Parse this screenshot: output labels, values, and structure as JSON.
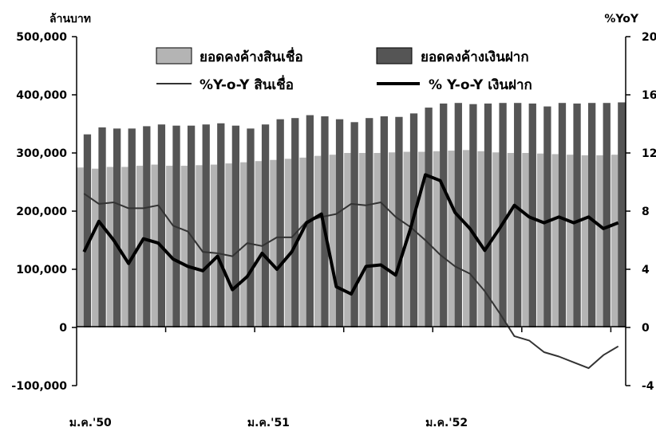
{
  "chart_data": {
    "type": "bar+line",
    "left_unit": "ล้านบาท",
    "right_unit": "%YoY",
    "left_axis": {
      "ylim": [
        -100000,
        500000
      ],
      "ticks": [
        -100000,
        0,
        100000,
        200000,
        300000,
        400000,
        500000
      ],
      "tick_labels": [
        "-100,000",
        "0",
        "100,000",
        "200,000",
        "300,000",
        "400,000",
        "500,000"
      ]
    },
    "right_axis": {
      "ylim": [
        -4,
        20
      ],
      "ticks": [
        -4,
        0,
        4,
        8,
        12,
        16,
        20
      ],
      "tick_labels": [
        "-4",
        "0",
        "4",
        "8",
        "12",
        "16",
        "20"
      ]
    },
    "x_tick_labels": [
      "ม.ค.'50",
      "ม.ค.'51",
      "ม.ค.'52"
    ],
    "x_label_positions": [
      0,
      12,
      24
    ],
    "legend": {
      "loans_bar": "ยอดคงค้างสินเชื่อ",
      "deposits_bar": "ยอดคงค้างเงินฝาก",
      "loans_line": "%Y-o-Y สินเชื่อ",
      "deposits_line": "% Y-o-Y เงินฝาก"
    },
    "colors": {
      "loans_bar": "#b4b4b4",
      "deposits_bar": "#555555",
      "loans_line": "#333333",
      "deposits_line": "#000000"
    },
    "bars": {
      "loans": [
        275000,
        273000,
        276000,
        276000,
        278000,
        280000,
        278000,
        278000,
        279000,
        280000,
        282000,
        284000,
        286000,
        288000,
        290000,
        292000,
        295000,
        297000,
        300000,
        300000,
        300000,
        301000,
        302000,
        302000,
        303000,
        304000,
        305000,
        303000,
        301000,
        300000,
        300000,
        299000,
        298000,
        297000,
        296000,
        296000,
        297000
      ],
      "deposits": [
        332000,
        344000,
        342000,
        342000,
        346000,
        349000,
        347000,
        347000,
        349000,
        351000,
        347000,
        342000,
        349000,
        358000,
        360000,
        365000,
        363000,
        358000,
        353000,
        360000,
        363000,
        362000,
        368000,
        378000,
        385000,
        386000,
        384000,
        385000,
        386000,
        386000,
        385000,
        380000,
        386000,
        385000,
        386000,
        386000,
        387000
      ]
    },
    "lines": {
      "loans_yoy": [
        9.2,
        8.5,
        8.6,
        8.2,
        8.2,
        8.4,
        7.0,
        6.6,
        5.2,
        5.1,
        4.9,
        5.8,
        5.6,
        6.2,
        6.2,
        7.3,
        7.6,
        7.8,
        8.5,
        8.4,
        8.6,
        7.6,
        6.9,
        6.0,
        5.0,
        4.2,
        3.7,
        2.5,
        1.0,
        -0.6,
        -0.9,
        -1.7,
        -2.0,
        -2.4,
        -2.8,
        -1.9,
        -1.3
      ],
      "deposits_yoy": [
        5.2,
        7.3,
        6.0,
        4.4,
        6.1,
        5.8,
        4.7,
        4.2,
        3.9,
        4.9,
        2.6,
        3.5,
        5.1,
        4.0,
        5.2,
        7.2,
        7.8,
        2.8,
        2.3,
        4.2,
        4.3,
        3.6,
        6.8,
        10.5,
        10.1,
        7.9,
        6.8,
        5.3,
        6.8,
        8.4,
        7.6,
        7.2,
        7.6,
        7.2,
        7.6,
        6.8,
        7.2
      ]
    }
  }
}
